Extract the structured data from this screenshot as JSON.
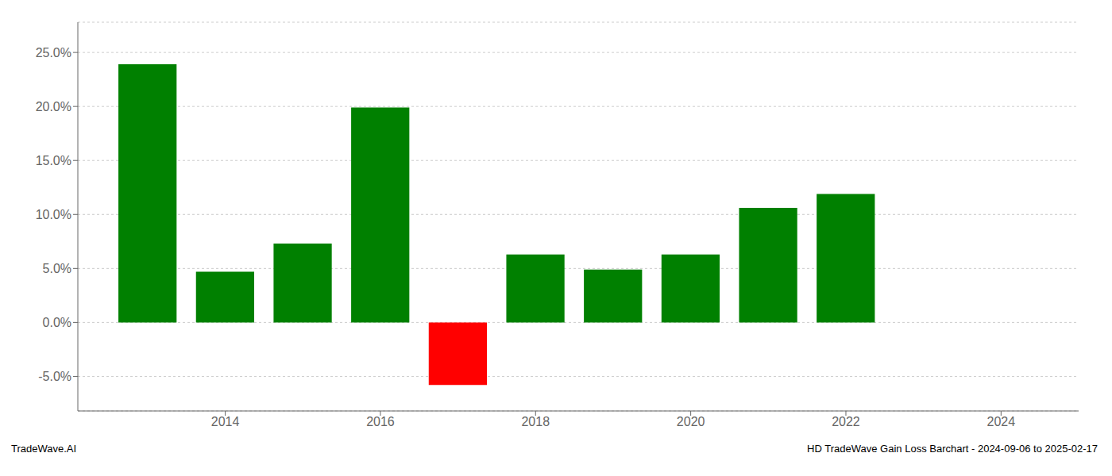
{
  "chart_data": {
    "type": "bar",
    "x": [
      2013,
      2014,
      2015,
      2016,
      2017,
      2018,
      2019,
      2020,
      2021,
      2022
    ],
    "values": [
      0.239,
      0.047,
      0.073,
      0.199,
      -0.058,
      0.063,
      0.049,
      0.063,
      0.106,
      0.119
    ],
    "colors": [
      "#008000",
      "#008000",
      "#008000",
      "#008000",
      "#ff0000",
      "#008000",
      "#008000",
      "#008000",
      "#008000",
      "#008000"
    ],
    "xlim": [
      2012.1,
      2025.0
    ],
    "xticks": [
      2014,
      2016,
      2018,
      2020,
      2022,
      2024
    ],
    "ylim": [
      -0.082,
      0.278
    ],
    "yticks": [
      {
        "value": -0.05,
        "label": "-5.0%"
      },
      {
        "value": 0.0,
        "label": "0.0%"
      },
      {
        "value": 0.05,
        "label": "5.0%"
      },
      {
        "value": 0.1,
        "label": "10.0%"
      },
      {
        "value": 0.15,
        "label": "15.0%"
      },
      {
        "value": 0.2,
        "label": "20.0%"
      },
      {
        "value": 0.25,
        "label": "25.0%"
      }
    ],
    "grid": true,
    "annotations": [
      "TradeWave.AI",
      "HD TradeWave Gain Loss Barchart - 2024-09-06 to 2025-02-17"
    ]
  }
}
